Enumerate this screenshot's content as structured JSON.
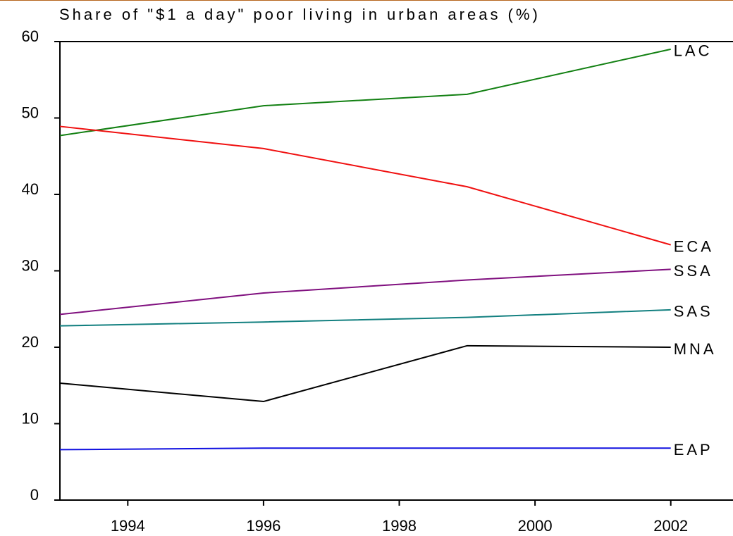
{
  "chart_data": {
    "type": "line",
    "title": "Share of \"$1 a day\" poor living in urban areas (%)",
    "x": [
      1993,
      1996,
      1999,
      2002
    ],
    "series": [
      {
        "name": "LAC",
        "color": "#128012",
        "values": [
          47.7,
          51.6,
          53.1,
          59.0
        ]
      },
      {
        "name": "ECA",
        "color": "#f01010",
        "values": [
          48.9,
          46.0,
          41.0,
          33.4
        ]
      },
      {
        "name": "SSA",
        "color": "#80107f",
        "values": [
          24.3,
          27.1,
          28.8,
          30.2
        ]
      },
      {
        "name": "SAS",
        "color": "#138080",
        "values": [
          22.8,
          23.3,
          23.9,
          24.9
        ]
      },
      {
        "name": "MNA",
        "color": "#000000",
        "values": [
          15.3,
          12.9,
          20.2,
          20.0
        ]
      },
      {
        "name": "EAP",
        "color": "#1010e0",
        "values": [
          6.6,
          6.8,
          6.8,
          6.8
        ]
      }
    ],
    "xlim": [
      1993,
      2003
    ],
    "xticks": [
      1994,
      1996,
      1998,
      2000,
      2002
    ],
    "ylim": [
      0,
      60
    ],
    "yticks": [
      0,
      10,
      20,
      30,
      40,
      50,
      60
    ]
  }
}
